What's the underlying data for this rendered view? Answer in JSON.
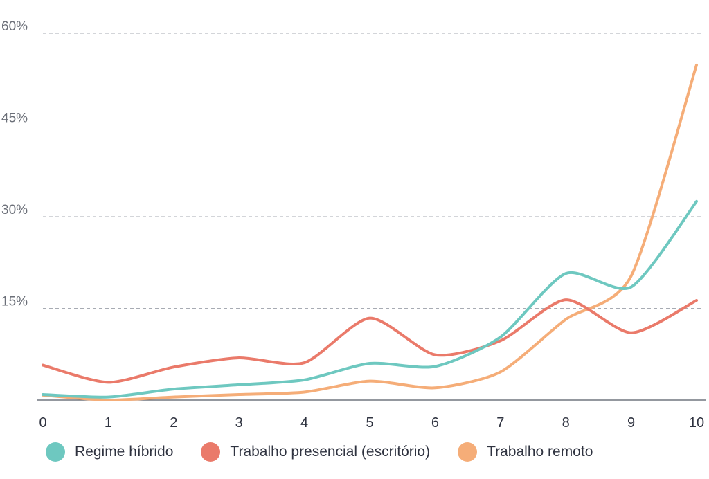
{
  "chart_data": {
    "type": "line",
    "title": "",
    "xlabel": "",
    "ylabel": "",
    "x": [
      0,
      1,
      2,
      3,
      4,
      5,
      6,
      7,
      8,
      9,
      10
    ],
    "x_tick_labels": [
      "0",
      "1",
      "2",
      "3",
      "4",
      "5",
      "6",
      "7",
      "8",
      "9",
      "10"
    ],
    "y_ticks": [
      15,
      30,
      45,
      60
    ],
    "y_tick_labels": [
      "15%",
      "30%",
      "45%",
      "60%"
    ],
    "ylim": [
      0,
      60
    ],
    "grid": "horizontal-dashed",
    "legend_position": "bottom",
    "series": [
      {
        "name": "Regime híbrido",
        "color": "#6ec8c0",
        "values": [
          0.9,
          0.5,
          1.8,
          2.5,
          3.3,
          6.0,
          5.5,
          10.3,
          20.7,
          18.5,
          32.5
        ]
      },
      {
        "name": "Trabalho presencial (escritório)",
        "color": "#ea7a6a",
        "values": [
          5.7,
          2.9,
          5.4,
          6.9,
          6.1,
          13.4,
          7.4,
          9.7,
          16.4,
          11.0,
          16.3
        ]
      },
      {
        "name": "Trabalho remoto",
        "color": "#f5ad78",
        "values": [
          0.8,
          0.0,
          0.5,
          0.9,
          1.3,
          3.1,
          2.0,
          4.6,
          13.2,
          20.3,
          54.8
        ]
      }
    ]
  }
}
